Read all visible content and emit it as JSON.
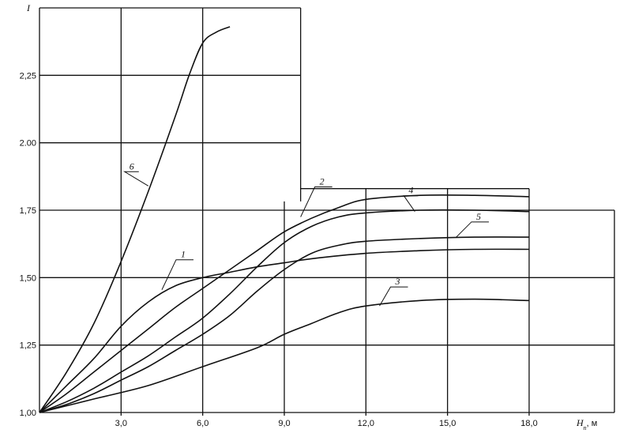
{
  "chart_data": {
    "type": "line",
    "title": "",
    "ylabel": "I",
    "xlabel": "H",
    "xlabel_sub": "n",
    "xlabel_unit": ", м",
    "xlim": [
      0,
      18
    ],
    "ylim": [
      1.0,
      2.5
    ],
    "x_ticks": [
      {
        "value": 3,
        "label": "3,0"
      },
      {
        "value": 6,
        "label": "6,0"
      },
      {
        "value": 9,
        "label": "9,0"
      },
      {
        "value": 12,
        "label": "12,0"
      },
      {
        "value": 15,
        "label": "15,0"
      },
      {
        "value": 18,
        "label": "18,0"
      }
    ],
    "y_ticks": [
      {
        "value": 1.0,
        "label": "1,00"
      },
      {
        "value": 1.25,
        "label": "1,25"
      },
      {
        "value": 1.5,
        "label": "1,50"
      },
      {
        "value": 1.75,
        "label": "1,75"
      },
      {
        "value": 2.0,
        "label": "2.00"
      },
      {
        "value": 2.25,
        "label": "2,25"
      }
    ],
    "grid": true,
    "series": [
      {
        "name": "1",
        "x": [
          0,
          1,
          2,
          3,
          4,
          5,
          6,
          7,
          8,
          9,
          10,
          12,
          14,
          16,
          18
        ],
        "y": [
          1.0,
          1.1,
          1.2,
          1.32,
          1.41,
          1.47,
          1.5,
          1.52,
          1.54,
          1.555,
          1.57,
          1.59,
          1.6,
          1.605,
          1.605
        ]
      },
      {
        "name": "2",
        "x": [
          0,
          1,
          2,
          3,
          4,
          5,
          6,
          7,
          8,
          9,
          10,
          11,
          12,
          14,
          16,
          18
        ],
        "y": [
          1.0,
          1.07,
          1.15,
          1.23,
          1.31,
          1.39,
          1.46,
          1.53,
          1.6,
          1.67,
          1.72,
          1.76,
          1.79,
          1.805,
          1.805,
          1.8
        ]
      },
      {
        "name": "3",
        "x": [
          0,
          2,
          4,
          6,
          8,
          9,
          10,
          11,
          12,
          14,
          16,
          18
        ],
        "y": [
          1.0,
          1.05,
          1.1,
          1.17,
          1.24,
          1.29,
          1.33,
          1.37,
          1.395,
          1.415,
          1.42,
          1.415
        ]
      },
      {
        "name": "4",
        "x": [
          0,
          1,
          2,
          3,
          4,
          5,
          6,
          7,
          8,
          9,
          10,
          11,
          12,
          14,
          16,
          18
        ],
        "y": [
          1.0,
          1.04,
          1.09,
          1.15,
          1.21,
          1.28,
          1.35,
          1.44,
          1.54,
          1.63,
          1.69,
          1.725,
          1.74,
          1.75,
          1.75,
          1.745
        ]
      },
      {
        "name": "5",
        "x": [
          0,
          1,
          2,
          3,
          4,
          5,
          6,
          7,
          8,
          9,
          10,
          11,
          12,
          14,
          16,
          18
        ],
        "y": [
          1.0,
          1.03,
          1.07,
          1.12,
          1.17,
          1.23,
          1.29,
          1.36,
          1.45,
          1.53,
          1.59,
          1.62,
          1.635,
          1.645,
          1.65,
          1.65
        ]
      },
      {
        "name": "6",
        "x": [
          0,
          1,
          2,
          3,
          4,
          5,
          5.5,
          6,
          6.5,
          7
        ],
        "y": [
          1.0,
          1.15,
          1.33,
          1.56,
          1.82,
          2.1,
          2.25,
          2.37,
          2.41,
          2.43
        ]
      }
    ]
  }
}
